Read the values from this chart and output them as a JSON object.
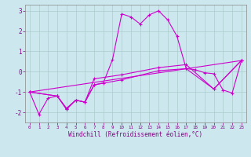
{
  "xlabel": "Windchill (Refroidissement éolien,°C)",
  "bg_color": "#cce8ee",
  "grid_color": "#aacccc",
  "line_color": "#cc00cc",
  "xlim": [
    -0.5,
    23.5
  ],
  "ylim": [
    -2.5,
    3.3
  ],
  "xticks": [
    0,
    1,
    2,
    3,
    4,
    5,
    6,
    7,
    8,
    9,
    10,
    11,
    12,
    13,
    14,
    15,
    16,
    17,
    18,
    19,
    20,
    21,
    22,
    23
  ],
  "yticks": [
    -2,
    -1,
    0,
    1,
    2,
    3
  ],
  "series1_x": [
    0,
    1,
    2,
    3,
    4,
    5,
    6,
    7,
    8,
    9,
    10,
    11,
    12,
    13,
    14,
    15,
    16,
    17,
    18,
    19,
    20,
    21,
    22,
    23
  ],
  "series1_y": [
    -1.0,
    -2.1,
    -1.3,
    -1.2,
    -1.85,
    -1.4,
    -1.5,
    -0.65,
    -0.55,
    0.6,
    2.85,
    2.7,
    2.35,
    2.8,
    3.0,
    2.55,
    1.75,
    0.15,
    0.1,
    -0.05,
    -0.1,
    -0.9,
    -1.05,
    0.55
  ],
  "series2_x": [
    0,
    3,
    4,
    5,
    6,
    7,
    10,
    14,
    17,
    20,
    23
  ],
  "series2_y": [
    -1.0,
    -1.2,
    -1.8,
    -1.4,
    -1.5,
    -0.65,
    -0.4,
    0.05,
    0.15,
    -0.85,
    0.55
  ],
  "series3_x": [
    0,
    3,
    4,
    5,
    6,
    7,
    10,
    14,
    17,
    20,
    23
  ],
  "series3_y": [
    -1.0,
    -1.2,
    -1.85,
    -1.4,
    -1.5,
    -0.35,
    -0.15,
    0.2,
    0.35,
    -0.85,
    0.55
  ],
  "series4_x": [
    0,
    23
  ],
  "series4_y": [
    -1.0,
    0.55
  ]
}
